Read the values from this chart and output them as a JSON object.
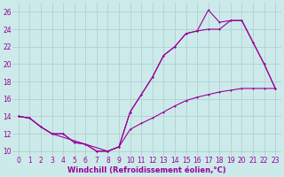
{
  "background_color": "#cceaea",
  "grid_color": "#aacccc",
  "line_color": "#990099",
  "xlim": [
    -0.5,
    23.5
  ],
  "ylim": [
    9.5,
    27
  ],
  "xticks": [
    0,
    1,
    2,
    3,
    4,
    5,
    6,
    7,
    8,
    9,
    10,
    11,
    12,
    13,
    14,
    15,
    16,
    17,
    18,
    19,
    20,
    21,
    22,
    23
  ],
  "yticks": [
    10,
    12,
    14,
    16,
    18,
    20,
    22,
    24,
    26
  ],
  "xlabel": "Windchill (Refroidissement éolien,°C)",
  "s1_x": [
    0,
    1,
    2,
    3,
    4,
    5,
    6,
    7,
    8,
    9,
    10,
    11,
    12,
    13,
    14,
    15,
    16,
    17,
    18,
    19,
    20,
    21,
    22,
    23
  ],
  "s1_y": [
    14,
    13.8,
    12.8,
    12.0,
    12.0,
    11.0,
    10.8,
    10.0,
    10.0,
    10.5,
    14.5,
    16.5,
    18.5,
    21.0,
    22.0,
    23.5,
    23.8,
    24.0,
    24.0,
    25.0,
    25.0,
    22.5,
    20.0,
    17.2
  ],
  "s2_x": [
    0,
    1,
    2,
    3,
    8,
    9,
    10,
    11,
    12,
    13,
    14,
    15,
    16,
    17,
    18,
    19,
    20,
    21,
    22,
    23
  ],
  "s2_y": [
    14,
    13.8,
    12.8,
    12.0,
    10.0,
    10.5,
    14.5,
    16.5,
    18.5,
    21.0,
    22.0,
    23.5,
    23.8,
    26.2,
    24.8,
    25.0,
    25.0,
    22.5,
    20.0,
    17.2
  ],
  "s3_x": [
    0,
    1,
    2,
    3,
    4,
    5,
    6,
    7,
    8,
    9,
    10,
    11,
    12,
    13,
    14,
    15,
    16,
    17,
    18,
    19,
    20,
    21,
    22,
    23
  ],
  "s3_y": [
    14,
    13.8,
    12.8,
    12.0,
    12.0,
    11.0,
    10.8,
    10.0,
    10.0,
    10.5,
    12.5,
    13.2,
    13.8,
    14.5,
    15.2,
    15.8,
    16.2,
    16.5,
    16.8,
    17.0,
    17.2,
    17.2,
    17.2,
    17.2
  ],
  "tick_fontsize": 5.5,
  "label_fontsize": 6.0,
  "lw": 0.8,
  "ms": 2.0
}
